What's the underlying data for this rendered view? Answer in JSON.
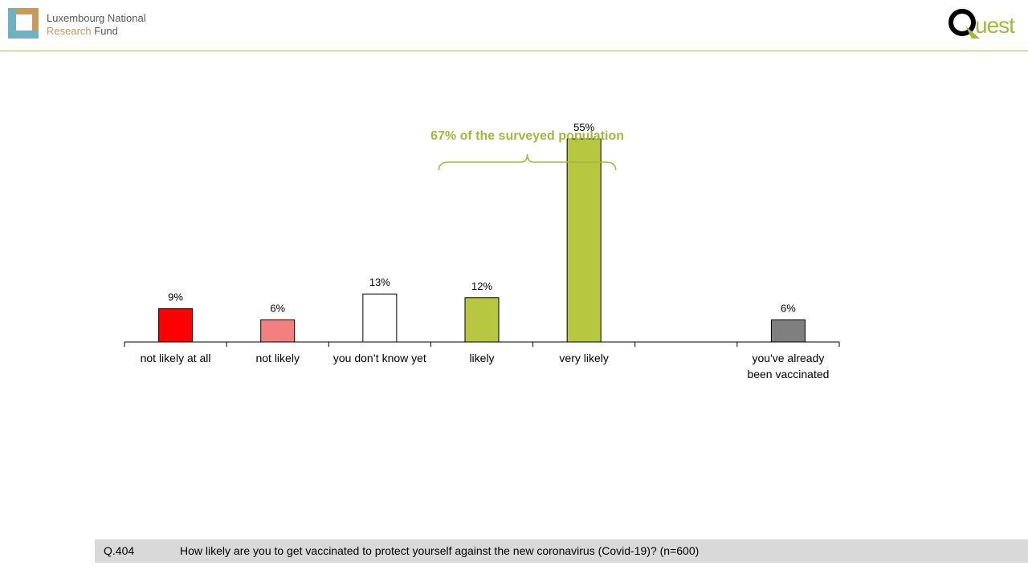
{
  "header": {
    "fnr_logo": {
      "line1": "Luxembourg National",
      "line2a": "Research",
      "line2b": "Fund",
      "colors": {
        "teal": "#6fb3c0",
        "gold": "#c69b5e"
      }
    },
    "quest_logo": {
      "text": "uest",
      "color": "#a4b83a"
    }
  },
  "chart_data": {
    "type": "bar",
    "categories": [
      "not likely at all",
      "not likely",
      "you don’t know yet",
      "likely",
      "very likely",
      "",
      "you've already been vaccinated"
    ],
    "category_lines": [
      [
        "not likely at all"
      ],
      [
        "not likely"
      ],
      [
        "you don’t know yet"
      ],
      [
        "likely"
      ],
      [
        "very likely"
      ],
      [],
      [
        "you've already",
        "been vaccinated"
      ]
    ],
    "values": [
      9,
      6,
      13,
      12,
      55,
      null,
      6
    ],
    "value_labels": [
      "9%",
      "6%",
      "13%",
      "12%",
      "55%",
      "",
      "6%"
    ],
    "colors": [
      "#ff0000",
      "#f47f7f",
      "#ffffff",
      "#b8c740",
      "#b8c740",
      "",
      "#7f7f7f"
    ],
    "ylim": [
      0,
      60
    ],
    "grid": false,
    "annotation": {
      "text": "67% of the surveyed population",
      "span": [
        "likely",
        "very likely"
      ],
      "color": "#a4b83a"
    }
  },
  "footer": {
    "qnum": "Q.404",
    "question": "How likely are you to get vaccinated to protect yourself against the new coronavirus (Covid-19)? (n=600)"
  }
}
